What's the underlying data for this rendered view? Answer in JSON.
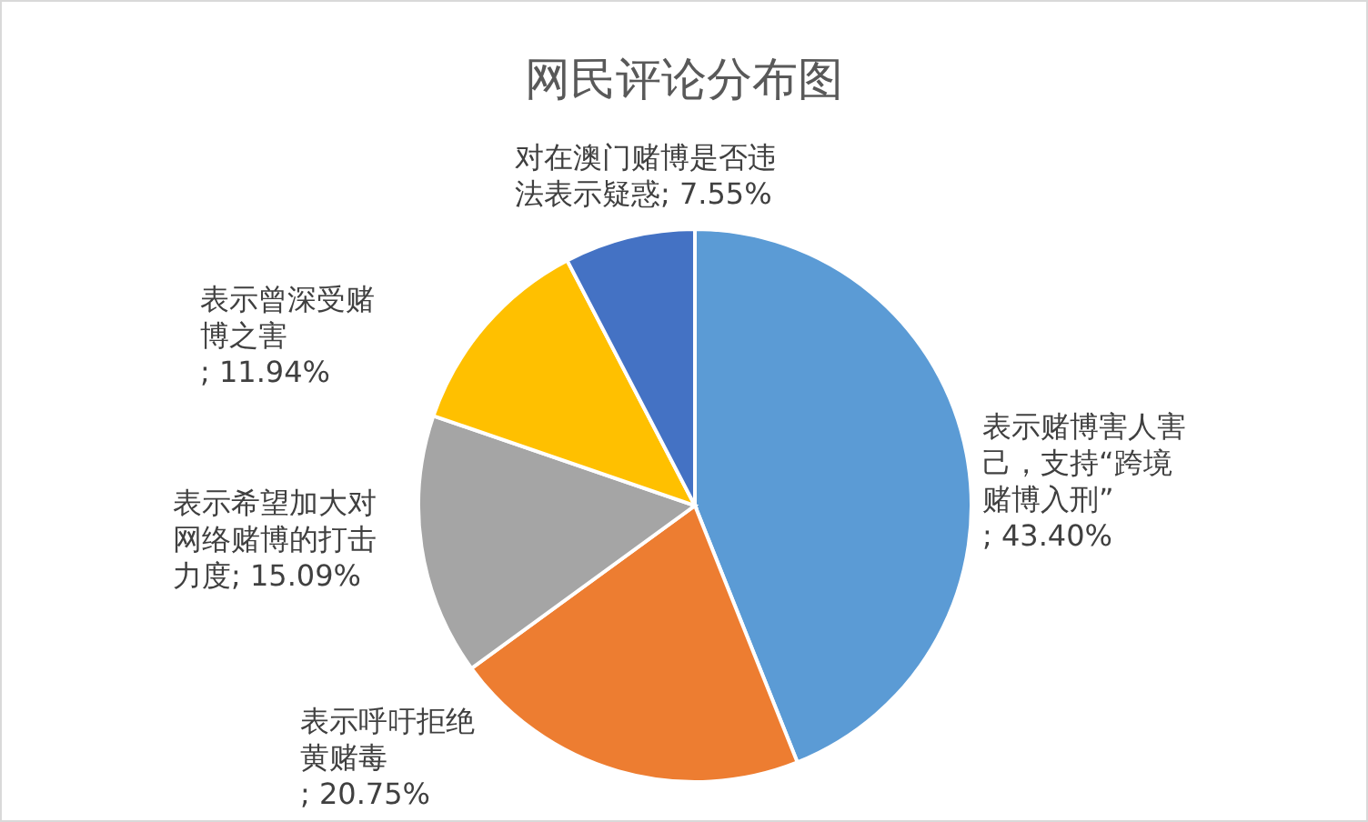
{
  "chart_data": {
    "type": "pie",
    "title": "网民评论分布图",
    "categories": [
      "表示赌博害人害己，支持“跨境赌博入刑”",
      "表示呼吁拒绝黄赌毒",
      "表示希望加大对网络赌博的打击力度",
      "表示曾深受赌博之害",
      "对在澳门赌博是否违法表示疑惑"
    ],
    "values": [
      43.4,
      20.75,
      15.09,
      11.94,
      7.55
    ],
    "value_labels": [
      "; 43.40%",
      "; 20.75%",
      "; 15.09%",
      "; 11.94%",
      "; 7.55%"
    ],
    "colors": [
      "#5b9bd5",
      "#ed7d31",
      "#a5a5a5",
      "#ffc000",
      "#4472c4"
    ]
  }
}
